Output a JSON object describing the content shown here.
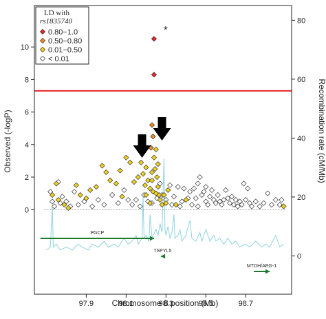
{
  "chart_data": {
    "type": "scatter",
    "xlabel": "Chromosome 8 position (Mb)",
    "ylabel": "Observed (-logP)",
    "y2label": "Recombination rate (cM/Mb)",
    "xlim": [
      97.64,
      98.93
    ],
    "ylim": [
      -5.2,
      12.55
    ],
    "y2lim": [
      -13,
      85
    ],
    "x_ticks": [
      "97.9",
      "98.1",
      "98.3",
      "98.5",
      "98.7"
    ],
    "y_ticks": [
      "0",
      "2",
      "4",
      "6",
      "8",
      "10"
    ],
    "y2_ticks": [
      "0",
      "20",
      "40",
      "60",
      "80"
    ],
    "significance_line": 7.3,
    "significance_color": "#e8232a",
    "legend": {
      "title": "LD with",
      "snp": "rs1835740",
      "placement": "top-left",
      "entries": [
        {
          "label": "0.80−1.0",
          "color": "#e8232a"
        },
        {
          "label": "0.50−0.80",
          "color": "#f28a1e"
        },
        {
          "label": "0.01−0.50",
          "color": "#f2d21c"
        },
        {
          "label": "< 0.01",
          "color": "#ffffff"
        }
      ]
    },
    "lead_marker": "*",
    "genes": [
      {
        "name": "PGCP",
        "start": 97.67,
        "end": 98.24,
        "strand": "+",
        "row": 1
      },
      {
        "name": "TSPYL5",
        "start": 98.275,
        "end": 98.29,
        "strand": "-",
        "row": 2
      },
      {
        "name": "MTDH/AEG-1",
        "start": 98.74,
        "end": 98.82,
        "strand": "+",
        "row": 3
      }
    ],
    "arrows_x": [
      98.18,
      98.28
    ],
    "red_points": [
      [
        98.24,
        10.5
      ],
      [
        98.24,
        8.3
      ]
    ],
    "orange_points": [
      [
        98.23,
        5.2
      ],
      [
        98.235,
        4.5
      ],
      [
        98.225,
        3.8
      ]
    ],
    "yellow_points": [
      [
        97.75,
        1.6
      ],
      [
        97.73,
        0.9
      ],
      [
        97.76,
        0.6
      ],
      [
        97.79,
        0.3
      ],
      [
        97.81,
        0.1
      ],
      [
        97.85,
        1.5
      ],
      [
        97.87,
        0.9
      ],
      [
        97.9,
        0.7
      ],
      [
        97.92,
        1.2
      ],
      [
        97.95,
        1.4
      ],
      [
        97.98,
        2.7
      ],
      [
        98.0,
        2.3
      ],
      [
        98.02,
        1.8
      ],
      [
        98.05,
        1.6
      ],
      [
        98.07,
        2.4
      ],
      [
        98.1,
        3.2
      ],
      [
        98.12,
        2.9
      ],
      [
        98.08,
        0.8
      ],
      [
        98.14,
        1.7
      ],
      [
        98.16,
        2.0
      ],
      [
        98.175,
        2.9
      ],
      [
        98.185,
        2.2
      ],
      [
        98.195,
        1.5
      ],
      [
        98.2,
        2.6
      ],
      [
        98.21,
        1.8
      ],
      [
        98.22,
        1.3
      ],
      [
        98.23,
        2.3
      ],
      [
        98.235,
        1.1
      ],
      [
        98.24,
        3.2
      ],
      [
        98.245,
        2.5
      ],
      [
        98.25,
        3.7
      ],
      [
        98.255,
        2.0
      ],
      [
        98.26,
        1.4
      ],
      [
        98.265,
        0.9
      ],
      [
        98.27,
        0.6
      ],
      [
        98.28,
        0.3
      ],
      [
        98.29,
        0.9
      ],
      [
        98.3,
        0.4
      ],
      [
        98.31,
        1.2
      ],
      [
        98.23,
        1.8
      ],
      [
        98.25,
        1.0
      ],
      [
        98.22,
        0.4
      ],
      [
        98.35,
        0.3
      ],
      [
        98.4,
        0.6
      ],
      [
        98.2,
        0.9
      ],
      [
        98.26,
        2.8
      ],
      [
        98.89,
        0.2
      ]
    ],
    "white_points": [
      [
        97.72,
        1.1
      ],
      [
        97.73,
        0.5
      ],
      [
        97.74,
        0.2
      ],
      [
        97.76,
        1.7
      ],
      [
        97.77,
        0.4
      ],
      [
        97.78,
        0.8
      ],
      [
        97.8,
        0.5
      ],
      [
        97.82,
        0.2
      ],
      [
        97.84,
        1.1
      ],
      [
        97.86,
        0.3
      ],
      [
        97.89,
        0.5
      ],
      [
        97.93,
        0.2
      ],
      [
        97.96,
        0.6
      ],
      [
        97.99,
        0.3
      ],
      [
        98.03,
        0.9
      ],
      [
        98.06,
        0.4
      ],
      [
        98.09,
        1.2
      ],
      [
        98.11,
        0.6
      ],
      [
        98.13,
        0.3
      ],
      [
        98.15,
        0.6
      ],
      [
        98.17,
        0.2
      ],
      [
        98.19,
        0.9
      ],
      [
        98.21,
        0.5
      ],
      [
        98.23,
        0.4
      ],
      [
        98.255,
        0.7
      ],
      [
        98.27,
        1.6
      ],
      [
        98.28,
        0.9
      ],
      [
        98.3,
        0.6
      ],
      [
        98.32,
        1.5
      ],
      [
        98.34,
        0.8
      ],
      [
        98.36,
        1.4
      ],
      [
        98.38,
        0.5
      ],
      [
        98.39,
        1.3
      ],
      [
        98.41,
        0.7
      ],
      [
        98.42,
        1.1
      ],
      [
        98.43,
        0.3
      ],
      [
        98.44,
        1.3
      ],
      [
        98.45,
        0.7
      ],
      [
        98.46,
        0.2
      ],
      [
        98.47,
        2.0
      ],
      [
        98.48,
        0.9
      ],
      [
        98.49,
        1.1
      ],
      [
        98.5,
        0.5
      ],
      [
        98.51,
        0.3
      ],
      [
        98.52,
        0.8
      ],
      [
        98.53,
        1.2
      ],
      [
        98.54,
        0.6
      ],
      [
        98.55,
        0.4
      ],
      [
        98.56,
        0.9
      ],
      [
        98.57,
        0.5
      ],
      [
        98.58,
        0.3
      ],
      [
        98.59,
        0.6
      ],
      [
        98.6,
        1.2
      ],
      [
        98.61,
        0.7
      ],
      [
        98.62,
        0.4
      ],
      [
        98.63,
        0.8
      ],
      [
        98.64,
        0.3
      ],
      [
        98.65,
        0.6
      ],
      [
        98.66,
        0.2
      ],
      [
        98.67,
        0.5
      ],
      [
        98.68,
        0.3
      ],
      [
        98.69,
        1.6
      ],
      [
        98.7,
        0.6
      ],
      [
        98.71,
        1.3
      ],
      [
        98.72,
        0.4
      ],
      [
        98.73,
        0.2
      ],
      [
        98.75,
        0.5
      ],
      [
        98.77,
        0.2
      ],
      [
        98.79,
        0.4
      ],
      [
        98.81,
        1.0
      ],
      [
        98.83,
        0.3
      ],
      [
        98.85,
        0.6
      ],
      [
        98.87,
        0.3
      ],
      [
        98.88,
        0.6
      ],
      [
        98.37,
        0.2
      ],
      [
        98.33,
        0.3
      ],
      [
        98.46,
        1.6
      ],
      [
        98.5,
        1.4
      ]
    ],
    "recombination_series_cM_Mb": [
      [
        97.7,
        2
      ],
      [
        97.72,
        3
      ],
      [
        97.73,
        17
      ],
      [
        97.735,
        3
      ],
      [
        97.75,
        4
      ],
      [
        97.77,
        2
      ],
      [
        97.8,
        3
      ],
      [
        97.83,
        2
      ],
      [
        97.86,
        4
      ],
      [
        97.88,
        3
      ],
      [
        97.91,
        2
      ],
      [
        97.93,
        4
      ],
      [
        97.96,
        3
      ],
      [
        97.99,
        5
      ],
      [
        98.01,
        3
      ],
      [
        98.04,
        4
      ],
      [
        98.06,
        3
      ],
      [
        98.09,
        6
      ],
      [
        98.11,
        4
      ],
      [
        98.13,
        5
      ],
      [
        98.15,
        7
      ],
      [
        98.16,
        4
      ],
      [
        98.18,
        6
      ],
      [
        98.185,
        20
      ],
      [
        98.19,
        6
      ],
      [
        98.2,
        7
      ],
      [
        98.215,
        5
      ],
      [
        98.22,
        14
      ],
      [
        98.23,
        6
      ],
      [
        98.25,
        9
      ],
      [
        98.26,
        7
      ],
      [
        98.27,
        11
      ],
      [
        98.28,
        8
      ],
      [
        98.29,
        33
      ],
      [
        98.295,
        9
      ],
      [
        98.3,
        7
      ],
      [
        98.31,
        10
      ],
      [
        98.32,
        6
      ],
      [
        98.33,
        8
      ],
      [
        98.34,
        14
      ],
      [
        98.345,
        6
      ],
      [
        98.36,
        7
      ],
      [
        98.37,
        9
      ],
      [
        98.38,
        5
      ],
      [
        98.4,
        7
      ],
      [
        98.42,
        12
      ],
      [
        98.43,
        6
      ],
      [
        98.45,
        5
      ],
      [
        98.47,
        8
      ],
      [
        98.48,
        5
      ],
      [
        98.5,
        9
      ],
      [
        98.52,
        5
      ],
      [
        98.54,
        7
      ],
      [
        98.55,
        5
      ],
      [
        98.57,
        6
      ],
      [
        98.59,
        4
      ],
      [
        98.61,
        6
      ],
      [
        98.63,
        4
      ],
      [
        98.65,
        5
      ],
      [
        98.67,
        3
      ],
      [
        98.7,
        4
      ],
      [
        98.72,
        3
      ],
      [
        98.75,
        5
      ],
      [
        98.78,
        3
      ],
      [
        98.8,
        4
      ],
      [
        98.82,
        3
      ],
      [
        98.85,
        7
      ],
      [
        98.87,
        3
      ],
      [
        98.89,
        4
      ]
    ]
  }
}
